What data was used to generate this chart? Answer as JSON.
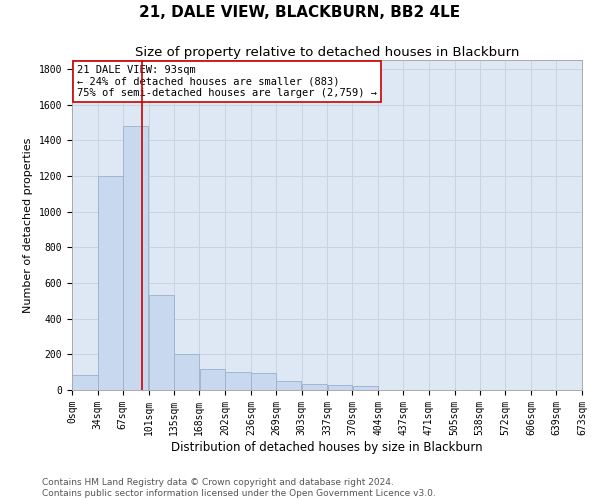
{
  "title": "21, DALE VIEW, BLACKBURN, BB2 4LE",
  "subtitle": "Size of property relative to detached houses in Blackburn",
  "xlabel": "Distribution of detached houses by size in Blackburn",
  "ylabel": "Number of detached properties",
  "bar_color": "#c8d8ee",
  "bar_edge_color": "#9ab0cc",
  "grid_color": "#c8d4e4",
  "background_color": "#dde8f4",
  "vline_value": 93,
  "vline_color": "#cc0000",
  "annotation_box_color": "#cc0000",
  "annotation_lines": [
    "21 DALE VIEW: 93sqm",
    "← 24% of detached houses are smaller (883)",
    "75% of semi-detached houses are larger (2,759) →"
  ],
  "bin_edges": [
    0,
    34,
    67,
    101,
    135,
    168,
    202,
    236,
    269,
    303,
    337,
    370,
    404,
    437,
    471,
    505,
    538,
    572,
    606,
    639,
    673
  ],
  "bar_heights": [
    85,
    1200,
    1480,
    530,
    200,
    115,
    100,
    95,
    50,
    35,
    30,
    20,
    0,
    0,
    0,
    0,
    0,
    0,
    0,
    0
  ],
  "tick_labels": [
    "0sqm",
    "34sqm",
    "67sqm",
    "101sqm",
    "135sqm",
    "168sqm",
    "202sqm",
    "236sqm",
    "269sqm",
    "303sqm",
    "337sqm",
    "370sqm",
    "404sqm",
    "437sqm",
    "471sqm",
    "505sqm",
    "538sqm",
    "572sqm",
    "606sqm",
    "639sqm",
    "673sqm"
  ],
  "ylim": [
    0,
    1850
  ],
  "yticks": [
    0,
    200,
    400,
    600,
    800,
    1000,
    1200,
    1400,
    1600,
    1800
  ],
  "footer_lines": [
    "Contains HM Land Registry data © Crown copyright and database right 2024.",
    "Contains public sector information licensed under the Open Government Licence v3.0."
  ],
  "title_fontsize": 11,
  "subtitle_fontsize": 9.5,
  "axis_label_fontsize": 8.5,
  "tick_fontsize": 7,
  "annotation_fontsize": 7.5,
  "footer_fontsize": 6.5,
  "ylabel_fontsize": 8
}
